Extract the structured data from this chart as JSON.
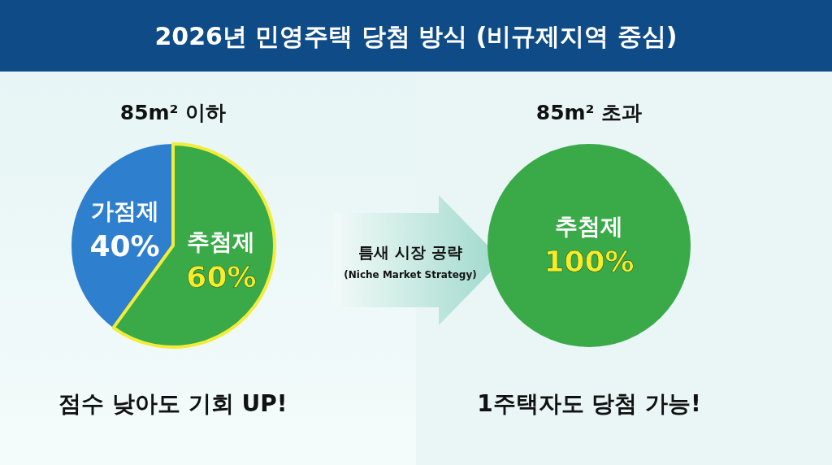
{
  "chart_data": [
    {
      "type": "pie",
      "title": "2026년 민영주택 당첨 방식 (비규제지역 중심)",
      "subtitle": "85m² 이하",
      "categories": [
        "가점제",
        "추첨제"
      ],
      "values": [
        40,
        60
      ],
      "colors": [
        "#2f7fcf",
        "#3aaa48"
      ],
      "value_labels": [
        "40%",
        "60%"
      ],
      "annotations": [
        "점수 낮아도 기회 UP!",
        "틈새 시장 공략",
        "(Niche Market Strategy)"
      ]
    },
    {
      "type": "pie",
      "subtitle": "85m² 초과",
      "categories": [
        "추첨제"
      ],
      "values": [
        100
      ],
      "colors": [
        "#3aaa48"
      ],
      "value_labels": [
        "100%"
      ],
      "annotations": [
        "1주택자도 당첨 가능!"
      ]
    }
  ]
}
